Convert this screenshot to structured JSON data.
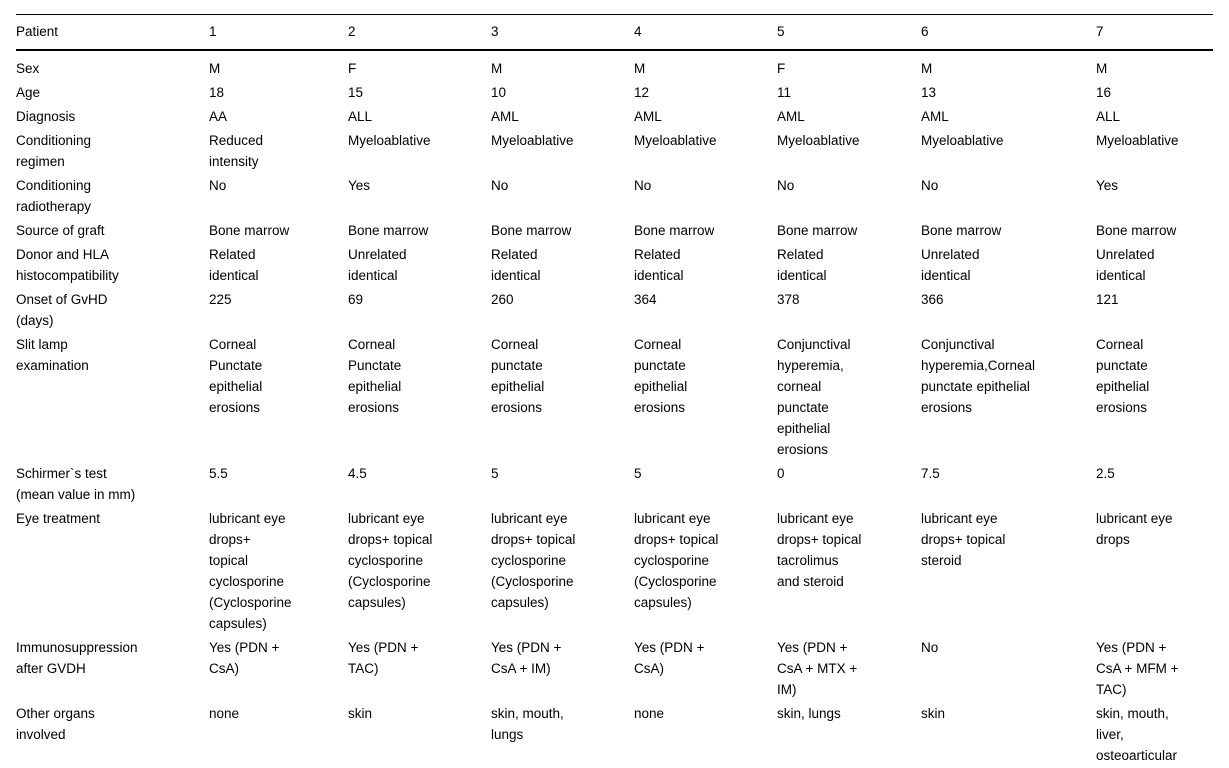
{
  "colors": {
    "background": "#ffffff",
    "text": "#000000",
    "rule": "#000000"
  },
  "table": {
    "header": {
      "label": "Patient",
      "columns": [
        "1",
        "2",
        "3",
        "4",
        "5",
        "6",
        "7"
      ]
    },
    "rows": [
      {
        "label": "Sex",
        "values": [
          "M",
          "F",
          "M",
          "M",
          "F",
          "M",
          "M"
        ]
      },
      {
        "label": "Age",
        "values": [
          "18",
          "15",
          "10",
          "12",
          "11",
          "13",
          "16"
        ]
      },
      {
        "label": "Diagnosis",
        "values": [
          "AA",
          "ALL",
          "AML",
          "AML",
          "AML",
          "AML",
          "ALL"
        ]
      },
      {
        "label": "Conditioning\nregimen",
        "values": [
          "Reduced\nintensity",
          "Myeloablative",
          "Myeloablative",
          "Myeloablative",
          "Myeloablative",
          "Myeloablative",
          "Myeloablative"
        ]
      },
      {
        "label": "Conditioning\nradiotherapy",
        "values": [
          "No",
          "Yes",
          "No",
          "No",
          "No",
          "No",
          "Yes"
        ]
      },
      {
        "label": "Source of graft",
        "values": [
          "Bone marrow",
          "Bone marrow",
          "Bone marrow",
          "Bone marrow",
          "Bone marrow",
          "Bone marrow",
          "Bone marrow"
        ]
      },
      {
        "label": "Donor and HLA\nhistocompatibility",
        "values": [
          "Related\nidentical",
          "Unrelated\nidentical",
          "Related\nidentical",
          "Related\nidentical",
          "Related\nidentical",
          "Unrelated\nidentical",
          "Unrelated\nidentical"
        ]
      },
      {
        "label": "Onset of GvHD\n(days)",
        "values": [
          "225",
          "69",
          "260",
          "364",
          "378",
          "366",
          "121"
        ]
      },
      {
        "label": "Slit lamp\nexamination",
        "values": [
          "Corneal\nPunctate\nepithelial\nerosions",
          "Corneal\nPunctate\nepithelial\nerosions",
          "Corneal\npunctate\nepithelial\nerosions",
          "Corneal\npunctate\nepithelial\nerosions",
          "Conjunctival\nhyperemia,\ncorneal\npunctate\nepithelial\nerosions",
          "Conjunctival\nhyperemia,Corneal\npunctate epithelial\nerosions",
          "Corneal\npunctate\nepithelial\nerosions"
        ]
      },
      {
        "label": "Schirmer`s test\n(mean value in mm)",
        "values": [
          "5.5",
          "4.5",
          "5",
          "5",
          "0",
          "7.5",
          "2.5"
        ]
      },
      {
        "label": "Eye treatment",
        "values": [
          "lubricant eye\ndrops+\ntopical\ncyclosporine\n(Cyclosporine\ncapsules)",
          "lubricant eye\ndrops+ topical\ncyclosporine\n(Cyclosporine\ncapsules)",
          "lubricant eye\ndrops+ topical\ncyclosporine\n(Cyclosporine\ncapsules)",
          "lubricant eye\ndrops+ topical\ncyclosporine\n(Cyclosporine\ncapsules)",
          "lubricant eye\ndrops+ topical\ntacrolimus\nand steroid",
          "lubricant eye\ndrops+ topical\nsteroid",
          "lubricant eye\ndrops"
        ]
      },
      {
        "label": "Immunosuppression\nafter GVDH",
        "values": [
          "Yes (PDN +\nCsA)",
          "Yes (PDN +\nTAC)",
          "Yes (PDN +\nCsA + IM)",
          "Yes (PDN +\nCsA)",
          "Yes (PDN +\nCsA + MTX +\nIM)",
          "No",
          "Yes (PDN +\nCsA + MFM +\nTAC)"
        ]
      },
      {
        "label": "Other organs\ninvolved",
        "values": [
          "none",
          "skin",
          "skin, mouth,\nlungs",
          "none",
          "skin, lungs",
          "skin",
          "skin, mouth,\nliver,\nosteoarticular"
        ]
      }
    ]
  }
}
